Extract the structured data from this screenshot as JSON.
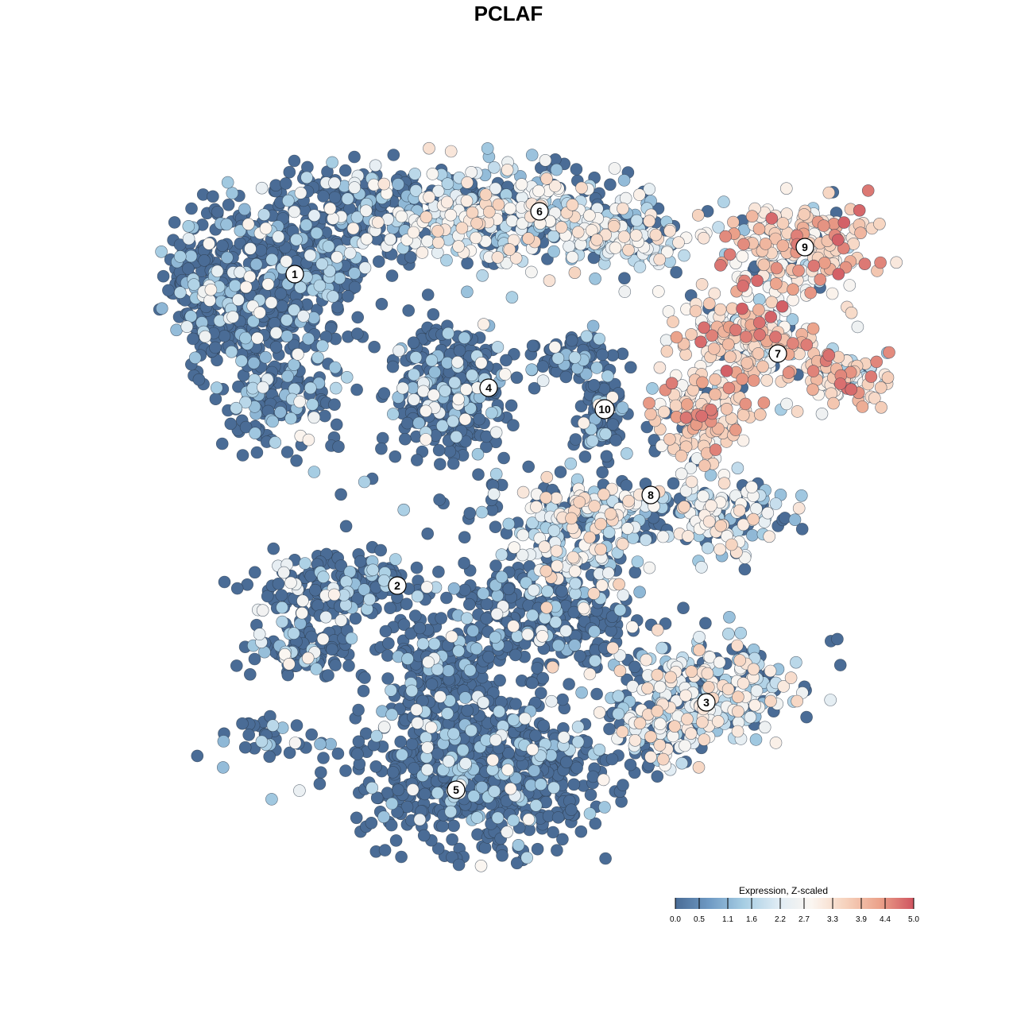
{
  "chart_data": {
    "type": "scatter",
    "title": "PCLAF",
    "xlabel": "",
    "ylabel": "",
    "colorbar": {
      "title": "Expression, Z-scaled",
      "ticks": [
        "0.0",
        "0.5",
        "1.1",
        "1.6",
        "2.2",
        "2.7",
        "3.3",
        "3.9",
        "4.4",
        "5.0"
      ],
      "range": [
        0,
        5
      ],
      "colors": [
        "#4a6c96",
        "#6f9ac4",
        "#a6cde3",
        "#deebf4",
        "#fbf6f1",
        "#f6d2bd",
        "#eba28a",
        "#cf5460"
      ]
    },
    "clusters": [
      {
        "label": "1",
        "expression": "low"
      },
      {
        "label": "2",
        "expression": "low"
      },
      {
        "label": "3",
        "expression": "medium"
      },
      {
        "label": "4",
        "expression": "low"
      },
      {
        "label": "5",
        "expression": "low"
      },
      {
        "label": "6",
        "expression": "medium"
      },
      {
        "label": "7",
        "expression": "high"
      },
      {
        "label": "8",
        "expression": "medium"
      },
      {
        "label": "9",
        "expression": "high"
      },
      {
        "label": "10",
        "expression": "low"
      }
    ],
    "grid": false,
    "legend_position": "bottom-right"
  }
}
